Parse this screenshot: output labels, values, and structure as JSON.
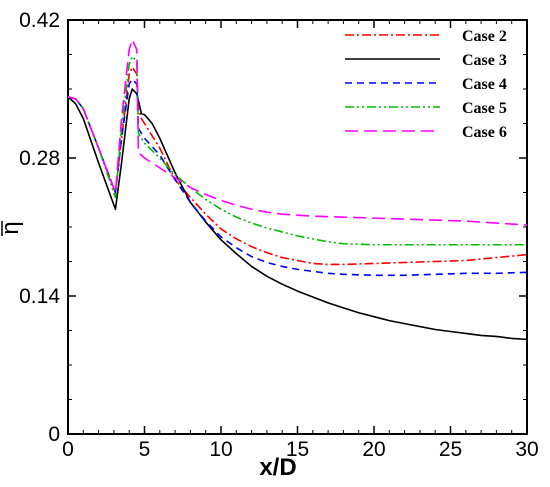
{
  "chart_data": {
    "type": "line",
    "xlabel": "x/D",
    "ylabel": "η",
    "xlim": [
      0,
      30
    ],
    "ylim": [
      0,
      0.42
    ],
    "xticks": [
      0,
      5,
      10,
      15,
      20,
      25,
      30
    ],
    "yticks": [
      0,
      0.14,
      0.28,
      0.42
    ],
    "ytick_labels": [
      "0",
      "0.14",
      "0.28",
      "0.42"
    ],
    "grid": false,
    "legend_position": "top-right",
    "series": [
      {
        "name": "Case 2",
        "color": "#ff0000",
        "dash": "dash-dot",
        "points": [
          [
            0,
            0.342
          ],
          [
            0.5,
            0.34
          ],
          [
            1,
            0.33
          ],
          [
            2,
            0.29
          ],
          [
            3.1,
            0.245
          ],
          [
            3.5,
            0.3
          ],
          [
            4,
            0.365
          ],
          [
            4.2,
            0.372
          ],
          [
            4.5,
            0.365
          ],
          [
            4.6,
            0.33
          ],
          [
            4.8,
            0.32
          ],
          [
            5,
            0.315
          ],
          [
            6,
            0.29
          ],
          [
            7,
            0.258
          ],
          [
            8,
            0.24
          ],
          [
            9,
            0.223
          ],
          [
            10,
            0.208
          ],
          [
            11,
            0.198
          ],
          [
            12,
            0.19
          ],
          [
            13,
            0.184
          ],
          [
            14,
            0.179
          ],
          [
            15,
            0.176
          ],
          [
            16,
            0.173
          ],
          [
            17,
            0.172
          ],
          [
            18,
            0.172
          ],
          [
            20,
            0.173
          ],
          [
            22,
            0.174
          ],
          [
            24,
            0.175
          ],
          [
            26,
            0.176
          ],
          [
            28,
            0.179
          ],
          [
            30,
            0.182
          ]
        ]
      },
      {
        "name": "Case 3",
        "color": "#000000",
        "dash": "solid",
        "points": [
          [
            0,
            0.342
          ],
          [
            0.5,
            0.335
          ],
          [
            1,
            0.32
          ],
          [
            2,
            0.275
          ],
          [
            3.1,
            0.228
          ],
          [
            3.5,
            0.275
          ],
          [
            4,
            0.34
          ],
          [
            4.2,
            0.35
          ],
          [
            4.5,
            0.345
          ],
          [
            4.8,
            0.325
          ],
          [
            5,
            0.324
          ],
          [
            5.5,
            0.315
          ],
          [
            6,
            0.3
          ],
          [
            7,
            0.265
          ],
          [
            8,
            0.235
          ],
          [
            9,
            0.215
          ],
          [
            10,
            0.197
          ],
          [
            11,
            0.183
          ],
          [
            12,
            0.17
          ],
          [
            13,
            0.16
          ],
          [
            14,
            0.152
          ],
          [
            15,
            0.145
          ],
          [
            16,
            0.139
          ],
          [
            17,
            0.133
          ],
          [
            18,
            0.128
          ],
          [
            19,
            0.123
          ],
          [
            20,
            0.119
          ],
          [
            21,
            0.115
          ],
          [
            22,
            0.112
          ],
          [
            23,
            0.109
          ],
          [
            24,
            0.106
          ],
          [
            25,
            0.104
          ],
          [
            26,
            0.102
          ],
          [
            27,
            0.1
          ],
          [
            28,
            0.099
          ],
          [
            29,
            0.097
          ],
          [
            30,
            0.096
          ]
        ]
      },
      {
        "name": "Case 4",
        "color": "#0000ff",
        "dash": "dashed",
        "points": [
          [
            0,
            0.342
          ],
          [
            0.5,
            0.34
          ],
          [
            1,
            0.33
          ],
          [
            2,
            0.29
          ],
          [
            3.1,
            0.245
          ],
          [
            3.5,
            0.3
          ],
          [
            4,
            0.355
          ],
          [
            4.2,
            0.36
          ],
          [
            4.5,
            0.355
          ],
          [
            4.6,
            0.31
          ],
          [
            4.8,
            0.305
          ],
          [
            5,
            0.3
          ],
          [
            6,
            0.283
          ],
          [
            7,
            0.258
          ],
          [
            8,
            0.235
          ],
          [
            9,
            0.216
          ],
          [
            10,
            0.2
          ],
          [
            11,
            0.189
          ],
          [
            12,
            0.18
          ],
          [
            13,
            0.174
          ],
          [
            14,
            0.17
          ],
          [
            15,
            0.167
          ],
          [
            16,
            0.165
          ],
          [
            17,
            0.163
          ],
          [
            18,
            0.162
          ],
          [
            20,
            0.161
          ],
          [
            22,
            0.161
          ],
          [
            24,
            0.162
          ],
          [
            26,
            0.163
          ],
          [
            28,
            0.163
          ],
          [
            30,
            0.164
          ]
        ]
      },
      {
        "name": "Case 5",
        "color": "#00bb00",
        "dash": "dash-dot-dot",
        "points": [
          [
            0,
            0.342
          ],
          [
            0.5,
            0.34
          ],
          [
            1,
            0.33
          ],
          [
            2,
            0.29
          ],
          [
            3.1,
            0.24
          ],
          [
            3.5,
            0.31
          ],
          [
            4,
            0.375
          ],
          [
            4.2,
            0.383
          ],
          [
            4.5,
            0.378
          ],
          [
            4.6,
            0.305
          ],
          [
            4.8,
            0.3
          ],
          [
            5,
            0.295
          ],
          [
            6,
            0.28
          ],
          [
            7,
            0.263
          ],
          [
            8,
            0.25
          ],
          [
            9,
            0.238
          ],
          [
            10,
            0.228
          ],
          [
            11,
            0.22
          ],
          [
            12,
            0.214
          ],
          [
            13,
            0.209
          ],
          [
            14,
            0.205
          ],
          [
            15,
            0.201
          ],
          [
            16,
            0.198
          ],
          [
            17,
            0.195
          ],
          [
            18,
            0.193
          ],
          [
            20,
            0.192
          ],
          [
            22,
            0.192
          ],
          [
            24,
            0.192
          ],
          [
            26,
            0.192
          ],
          [
            28,
            0.192
          ],
          [
            30,
            0.192
          ]
        ]
      },
      {
        "name": "Case 6",
        "color": "#ff00ff",
        "dash": "long-dash",
        "points": [
          [
            0,
            0.342
          ],
          [
            0.5,
            0.34
          ],
          [
            1,
            0.33
          ],
          [
            2,
            0.29
          ],
          [
            3.1,
            0.245
          ],
          [
            3.5,
            0.32
          ],
          [
            4,
            0.39
          ],
          [
            4.2,
            0.4
          ],
          [
            4.5,
            0.39
          ],
          [
            4.6,
            0.285
          ],
          [
            4.8,
            0.283
          ],
          [
            5,
            0.28
          ],
          [
            6,
            0.27
          ],
          [
            7,
            0.26
          ],
          [
            8,
            0.25
          ],
          [
            9,
            0.243
          ],
          [
            10,
            0.237
          ],
          [
            11,
            0.232
          ],
          [
            12,
            0.228
          ],
          [
            13,
            0.225
          ],
          [
            14,
            0.223
          ],
          [
            15,
            0.222
          ],
          [
            16,
            0.221
          ],
          [
            18,
            0.22
          ],
          [
            20,
            0.219
          ],
          [
            22,
            0.218
          ],
          [
            24,
            0.217
          ],
          [
            26,
            0.216
          ],
          [
            28,
            0.214
          ],
          [
            30,
            0.212
          ]
        ]
      }
    ]
  }
}
